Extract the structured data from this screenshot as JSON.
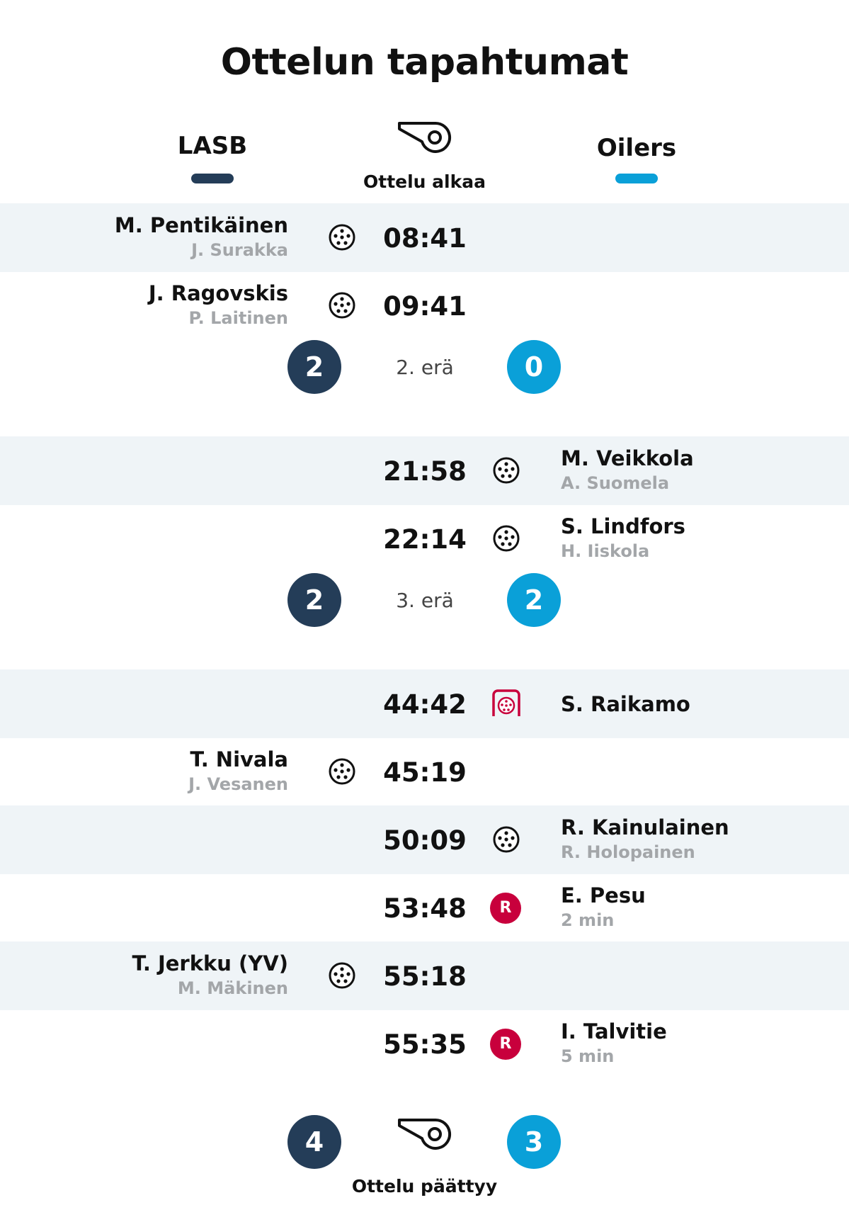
{
  "title": "Ottelun tapahtumat",
  "colors": {
    "home": "#243d58",
    "away": "#0aa0d8",
    "penalty": "#c8003c",
    "row_shade": "#eff4f7",
    "assist": "#a3a6a9"
  },
  "teams": {
    "home": "LASB",
    "away": "Oilers"
  },
  "start_label": "Ottelu alkaa",
  "end_label": "Ottelu päättyy",
  "events": [
    {
      "time": "08:41",
      "side": "home",
      "type": "goal",
      "player": "M. Pentikäinen",
      "detail": "J. Surakka"
    },
    {
      "time": "09:41",
      "side": "home",
      "type": "goal",
      "player": "J. Ragovskis",
      "detail": "P. Laitinen"
    },
    {
      "time": "21:58",
      "side": "away",
      "type": "goal",
      "player": "M. Veikkola",
      "detail": "A. Suomela"
    },
    {
      "time": "22:14",
      "side": "away",
      "type": "goal",
      "player": "S. Lindfors",
      "detail": "H. Iiskola"
    },
    {
      "time": "44:42",
      "side": "away",
      "type": "penalty-shot",
      "player": "S. Raikamo",
      "detail": ""
    },
    {
      "time": "45:19",
      "side": "home",
      "type": "goal",
      "player": "T. Nivala",
      "detail": "J. Vesanen"
    },
    {
      "time": "50:09",
      "side": "away",
      "type": "goal",
      "player": "R. Kainulainen",
      "detail": "R. Holopainen"
    },
    {
      "time": "53:48",
      "side": "away",
      "type": "penalty",
      "player": "E. Pesu",
      "detail": "2 min",
      "badge": "R"
    },
    {
      "time": "55:18",
      "side": "home",
      "type": "goal",
      "player": "T. Jerkku (YV)",
      "detail": "M. Mäkinen"
    },
    {
      "time": "55:35",
      "side": "away",
      "type": "penalty",
      "player": "I. Talvitie",
      "detail": "5 min",
      "badge": "R"
    }
  ],
  "periods": [
    {
      "label": "2. erä",
      "home_score": "2",
      "away_score": "0"
    },
    {
      "label": "3. erä",
      "home_score": "2",
      "away_score": "2"
    }
  ],
  "final": {
    "home_score": "4",
    "away_score": "3"
  }
}
